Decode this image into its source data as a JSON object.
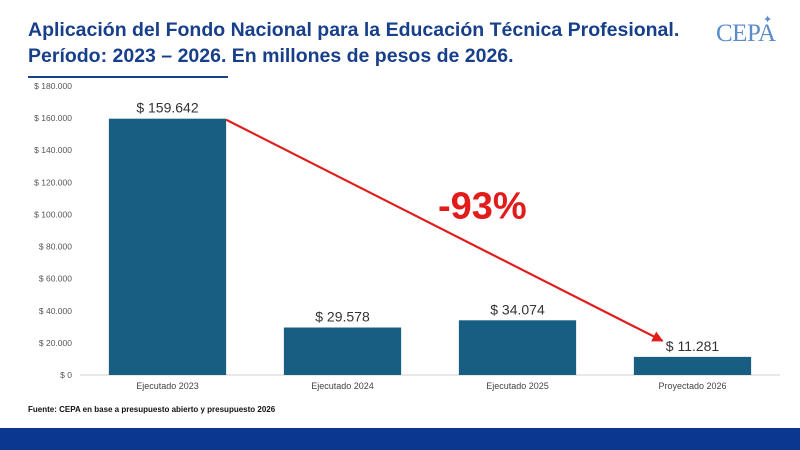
{
  "header": {
    "title_line1": "Aplicación del Fondo Nacional para la Educación Técnica Profesional.",
    "title_line2": "Período: 2023 – 2026. En millones de pesos de 2026."
  },
  "logo": {
    "text": "CEPA",
    "icon": "star-icon"
  },
  "chart_data": {
    "type": "bar",
    "categories": [
      "Ejecutado 2023",
      "Ejecutado 2024",
      "Ejecutado 2025",
      "Proyectado 2026"
    ],
    "values": [
      159642,
      29578,
      34074,
      11281
    ],
    "data_labels": [
      "$ 159.642",
      "$ 29.578",
      "$ 34.074",
      "$ 11.281"
    ],
    "ylim": [
      0,
      180000
    ],
    "yticks": [
      0,
      20000,
      40000,
      60000,
      80000,
      100000,
      120000,
      140000,
      160000,
      180000
    ],
    "ytick_labels": [
      "$ 0",
      "$ 20.000",
      "$ 40.000",
      "$ 60.000",
      "$ 80.000",
      "$ 100.000",
      "$ 120.000",
      "$ 140.000",
      "$ 160.000",
      "$ 180.000"
    ],
    "grid": false,
    "bar_color": "#175e82",
    "annotation": {
      "text": "-93%",
      "from_category": "Ejecutado 2023",
      "to_category": "Proyectado 2026",
      "color": "#e21b1b"
    }
  },
  "footer": {
    "source": "Fuente: CEPA en base a presupuesto abierto y presupuesto 2026",
    "band_color": "#0b3791"
  }
}
